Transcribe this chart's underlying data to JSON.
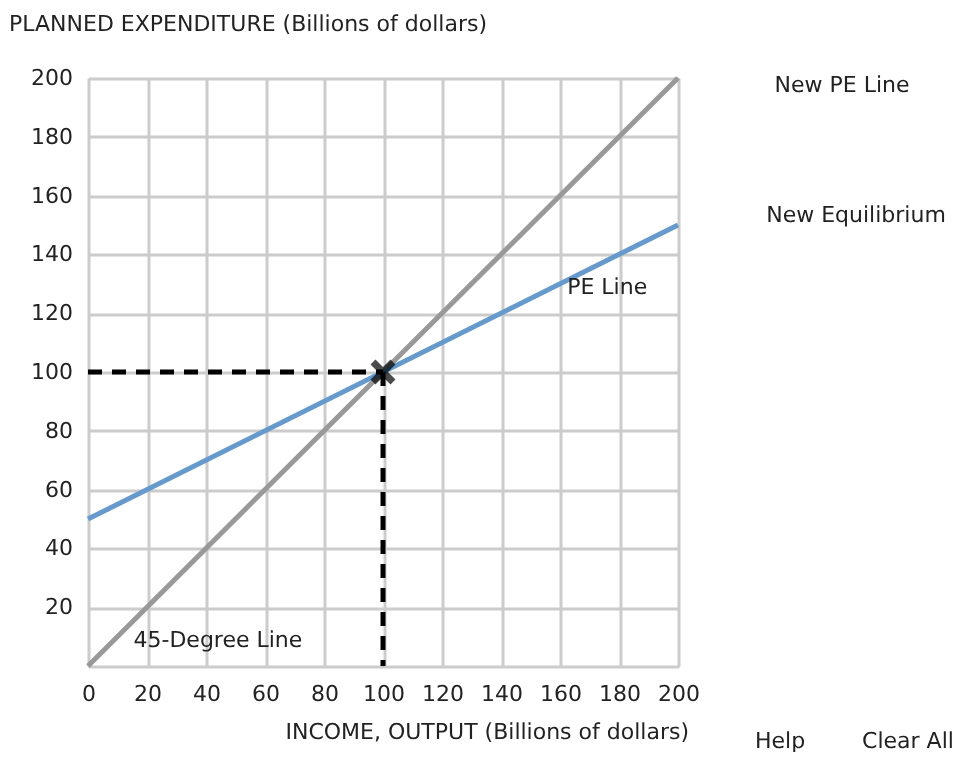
{
  "chart_data": {
    "type": "line",
    "xlabel": "INCOME, OUTPUT (Billions of dollars)",
    "ylabel": "PLANNED EXPENDITURE (Billions of dollars)",
    "xlim": [
      0,
      200
    ],
    "ylim": [
      0,
      200
    ],
    "xticks": [
      0,
      20,
      40,
      60,
      80,
      100,
      120,
      140,
      160,
      180,
      200
    ],
    "yticks": [
      {
        "value": 0,
        "label": null
      },
      20,
      40,
      60,
      80,
      100,
      120,
      140,
      160,
      180,
      200
    ],
    "grid": true,
    "series": [
      {
        "name": "45-Degree Line",
        "color": "#999999",
        "x": [
          0,
          200
        ],
        "values": [
          0,
          200
        ]
      },
      {
        "name": "PE Line",
        "color": "#6699cc",
        "x": [
          0,
          200
        ],
        "values": [
          50,
          150
        ]
      },
      {
        "color": "#000000",
        "line_style": "dashed",
        "x": [
          0,
          100
        ],
        "values": [
          100,
          100
        ]
      },
      {
        "color": "#000000",
        "line_style": "dashed",
        "x": [
          100,
          100
        ],
        "values": [
          100,
          0
        ]
      },
      {
        "type": "scatter",
        "color": "#000000",
        "marker": "cross",
        "x": [
          100
        ],
        "values": [
          100
        ]
      }
    ],
    "annotations": [
      "New PE Line",
      "New Equilibrium",
      "Help",
      "Clear All"
    ]
  }
}
